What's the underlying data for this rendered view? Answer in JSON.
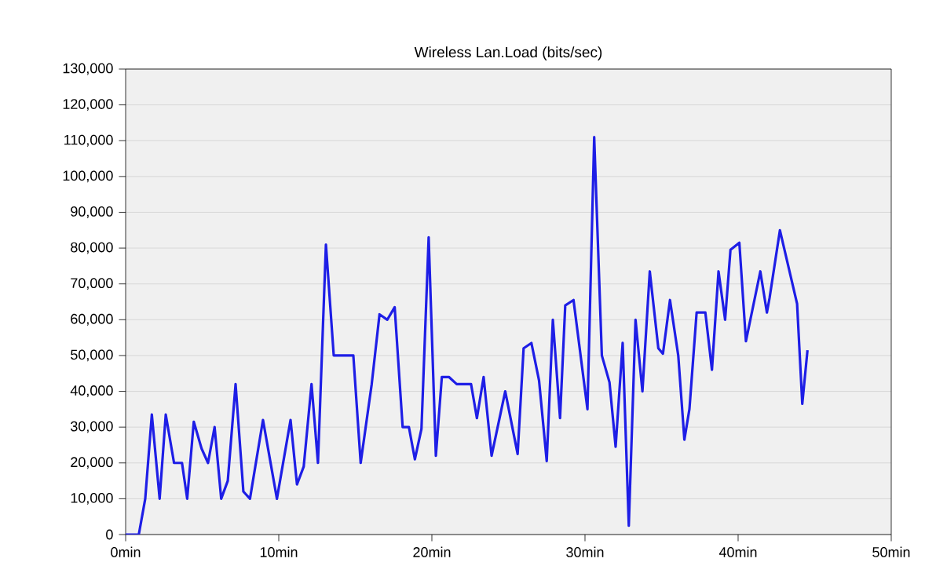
{
  "chart_data": {
    "type": "line",
    "title": "Wireless Lan.Load (bits/sec)",
    "x": [
      0,
      0.86,
      1.28,
      1.71,
      2.22,
      2.62,
      3.16,
      3.68,
      4.02,
      4.45,
      4.96,
      5.38,
      5.81,
      6.24,
      6.67,
      7.18,
      7.69,
      8.12,
      8.97,
      9.88,
      10.77,
      11.19,
      11.63,
      12.14,
      12.56,
      13.08,
      13.59,
      14.87,
      15.35,
      16.07,
      16.58,
      17.09,
      17.57,
      18.09,
      18.5,
      18.89,
      19.32,
      19.79,
      20.26,
      20.65,
      21.11,
      21.62,
      22.56,
      22.94,
      23.38,
      23.9,
      24.79,
      25.6,
      25.99,
      26.5,
      27.0,
      27.5,
      27.9,
      28.37,
      28.71,
      29.25,
      30.16,
      30.6,
      31.1,
      31.6,
      32.0,
      32.46,
      32.86,
      33.3,
      33.75,
      34.23,
      34.79,
      35.09,
      35.55,
      36.09,
      36.49,
      36.82,
      37.29,
      37.86,
      38.29,
      38.72,
      39.15,
      39.5,
      40.08,
      40.51,
      41.45,
      41.88,
      42.05,
      42.73,
      43.85,
      44.19,
      44.53
    ],
    "series": [
      {
        "color": "#1e1ee6",
        "values": [
          0,
          0,
          10000,
          33500,
          10000,
          33500,
          20000,
          20000,
          10000,
          31500,
          24000,
          20000,
          30000,
          10000,
          15000,
          42000,
          12000,
          10000,
          32000,
          10000,
          32000,
          14000,
          19000,
          42000,
          20000,
          81000,
          50000,
          50000,
          20000,
          42000,
          61500,
          60000,
          63500,
          30000,
          30000,
          21000,
          29500,
          83000,
          22000,
          44000,
          44000,
          42000,
          42000,
          32500,
          44000,
          22000,
          40000,
          22500,
          52000,
          53500,
          43000,
          20500,
          60000,
          32500,
          64000,
          65500,
          35000,
          111000,
          50000,
          42500,
          24500,
          53500,
          2500,
          60000,
          40000,
          73500,
          52000,
          50500,
          65500,
          50000,
          26500,
          35000,
          62000,
          62000,
          46000,
          73500,
          60000,
          79500,
          81500,
          54000,
          73500,
          62000,
          66000,
          85000,
          64500,
          36500,
          51500
        ]
      }
    ],
    "xlim": [
      0,
      50
    ],
    "xticks": [
      {
        "value": 0,
        "label": "0min"
      },
      {
        "value": 10,
        "label": "10min"
      },
      {
        "value": 20,
        "label": "20min"
      },
      {
        "value": 30,
        "label": "30min"
      },
      {
        "value": 40,
        "label": "40min"
      },
      {
        "value": 50,
        "label": "50min"
      }
    ],
    "ylim": [
      0,
      130000
    ],
    "yticks": [
      0,
      {
        "value": 10000,
        "label": "10,000"
      },
      {
        "value": 20000,
        "label": "20,000"
      },
      {
        "value": 30000,
        "label": "30,000"
      },
      {
        "value": 40000,
        "label": "40,000"
      },
      {
        "value": 50000,
        "label": "50,000"
      },
      {
        "value": 60000,
        "label": "60,000"
      },
      {
        "value": 70000,
        "label": "70,000"
      },
      {
        "value": 80000,
        "label": "80,000"
      },
      {
        "value": 90000,
        "label": "90,000"
      },
      {
        "value": 100000,
        "label": "100,000"
      },
      {
        "value": 110000,
        "label": "110,000"
      },
      {
        "value": 120000,
        "label": "120,000"
      },
      {
        "value": 130000,
        "label": "130,000"
      }
    ],
    "grid": "y",
    "marker": "none",
    "line_style": "solid"
  }
}
